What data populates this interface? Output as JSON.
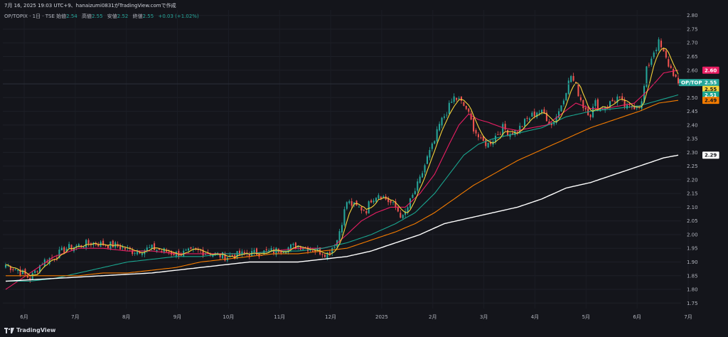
{
  "header": {
    "title_line": "7月 16, 2025 19:03 UTC+9、hanaizumi0831がTradingView.comで作成",
    "symbol": "OP/TOPIX · 1日 · TSE",
    "open_label": "始値",
    "open_value": "2.54",
    "high_label": "高値",
    "high_value": "2.55",
    "low_label": "安値",
    "low_value": "2.52",
    "close_label": "終値",
    "close_value": "2.55",
    "change": "+0.03 (+1.02%)"
  },
  "footer": {
    "brand": "TradingView"
  },
  "colors": {
    "background": "#14151b",
    "up": "#26a69a",
    "down": "#ef5350",
    "ma5": "#f5d33b",
    "ma25": "#e91e63",
    "ma50": "#1aa58f",
    "ma75": "#f57c00",
    "ma200": "#ffffff"
  },
  "chart_data": {
    "type": "line",
    "title": "",
    "x_axis_labels": [
      "6月",
      "7月",
      "8月",
      "9月",
      "10月",
      "11月",
      "12月",
      "2025",
      "2月",
      "3月",
      "4月",
      "5月",
      "6月",
      "7月"
    ],
    "y_axis_ticks": [
      "2.80",
      "2.75",
      "2.70",
      "2.65",
      "2.60",
      "2.55",
      "2.50",
      "2.45",
      "2.40",
      "2.35",
      "2.30",
      "2.25",
      "2.20",
      "2.15",
      "2.10",
      "2.05",
      "2.00",
      "1.95",
      "1.90",
      "1.85",
      "1.80",
      "1.75"
    ],
    "ylim": [
      1.73,
      2.82
    ],
    "grid": true,
    "price_points": [
      [
        0,
        1.89
      ],
      [
        5,
        1.87
      ],
      [
        10,
        1.84
      ],
      [
        15,
        1.9
      ],
      [
        20,
        1.92
      ],
      [
        25,
        1.95
      ],
      [
        35,
        1.97
      ],
      [
        45,
        1.96
      ],
      [
        52,
        1.94
      ],
      [
        60,
        1.95
      ],
      [
        70,
        1.93
      ],
      [
        80,
        1.94
      ],
      [
        90,
        1.92
      ],
      [
        100,
        1.93
      ],
      [
        110,
        1.94
      ],
      [
        120,
        1.96
      ],
      [
        125,
        1.95
      ],
      [
        132,
        1.93
      ],
      [
        136,
        1.98
      ],
      [
        140,
        2.12
      ],
      [
        144,
        2.1
      ],
      [
        148,
        2.09
      ],
      [
        150,
        2.13
      ],
      [
        153,
        2.15
      ],
      [
        156,
        2.13
      ],
      [
        160,
        2.1
      ],
      [
        163,
        2.06
      ],
      [
        166,
        2.12
      ],
      [
        170,
        2.2
      ],
      [
        173,
        2.28
      ],
      [
        176,
        2.34
      ],
      [
        178,
        2.4
      ],
      [
        181,
        2.45
      ],
      [
        184,
        2.5
      ],
      [
        186,
        2.49
      ],
      [
        189,
        2.46
      ],
      [
        192,
        2.39
      ],
      [
        195,
        2.34
      ],
      [
        198,
        2.33
      ],
      [
        201,
        2.36
      ],
      [
        204,
        2.39
      ],
      [
        207,
        2.37
      ],
      [
        210,
        2.38
      ],
      [
        214,
        2.42
      ],
      [
        218,
        2.45
      ],
      [
        221,
        2.44
      ],
      [
        224,
        2.4
      ],
      [
        227,
        2.45
      ],
      [
        230,
        2.53
      ],
      [
        232,
        2.58
      ],
      [
        234,
        2.54
      ],
      [
        237,
        2.47
      ],
      [
        240,
        2.44
      ],
      [
        242,
        2.48
      ],
      [
        244,
        2.46
      ],
      [
        248,
        2.48
      ],
      [
        251,
        2.5
      ],
      [
        255,
        2.46
      ],
      [
        258,
        2.47
      ],
      [
        261,
        2.48
      ],
      [
        263,
        2.6
      ],
      [
        266,
        2.67
      ],
      [
        268,
        2.7
      ],
      [
        270,
        2.66
      ],
      [
        272,
        2.62
      ],
      [
        274,
        2.59
      ],
      [
        276,
        2.55
      ]
    ],
    "series": [
      {
        "name": "OP/TOPIX",
        "last_value": "2.55",
        "color": "#26a69a"
      },
      {
        "color": "#e91e63",
        "last_value": "2.60",
        "values": [
          [
            0,
            1.8
          ],
          [
            10,
            1.86
          ],
          [
            20,
            1.92
          ],
          [
            30,
            1.95
          ],
          [
            40,
            1.95
          ],
          [
            50,
            1.94
          ],
          [
            60,
            1.94
          ],
          [
            70,
            1.93
          ],
          [
            80,
            1.93
          ],
          [
            90,
            1.93
          ],
          [
            100,
            1.93
          ],
          [
            110,
            1.94
          ],
          [
            120,
            1.95
          ],
          [
            130,
            1.95
          ],
          [
            135,
            1.96
          ],
          [
            140,
            2.0
          ],
          [
            146,
            2.05
          ],
          [
            152,
            2.08
          ],
          [
            158,
            2.1
          ],
          [
            164,
            2.1
          ],
          [
            170,
            2.15
          ],
          [
            176,
            2.22
          ],
          [
            182,
            2.33
          ],
          [
            186,
            2.4
          ],
          [
            190,
            2.44
          ],
          [
            194,
            2.42
          ],
          [
            198,
            2.41
          ],
          [
            204,
            2.39
          ],
          [
            210,
            2.38
          ],
          [
            216,
            2.39
          ],
          [
            222,
            2.4
          ],
          [
            228,
            2.44
          ],
          [
            234,
            2.48
          ],
          [
            240,
            2.46
          ],
          [
            246,
            2.46
          ],
          [
            252,
            2.47
          ],
          [
            258,
            2.48
          ],
          [
            264,
            2.53
          ],
          [
            270,
            2.59
          ],
          [
            276,
            2.6
          ]
        ]
      },
      {
        "color": "#1aa58f",
        "last_value": "2.51",
        "values": [
          [
            0,
            1.83
          ],
          [
            10,
            1.83
          ],
          [
            20,
            1.84
          ],
          [
            30,
            1.86
          ],
          [
            40,
            1.88
          ],
          [
            50,
            1.9
          ],
          [
            60,
            1.91
          ],
          [
            70,
            1.92
          ],
          [
            80,
            1.92
          ],
          [
            90,
            1.93
          ],
          [
            100,
            1.93
          ],
          [
            110,
            1.94
          ],
          [
            120,
            1.94
          ],
          [
            130,
            1.95
          ],
          [
            140,
            1.97
          ],
          [
            150,
            2.0
          ],
          [
            160,
            2.04
          ],
          [
            168,
            2.08
          ],
          [
            176,
            2.15
          ],
          [
            182,
            2.22
          ],
          [
            188,
            2.29
          ],
          [
            194,
            2.33
          ],
          [
            200,
            2.35
          ],
          [
            210,
            2.37
          ],
          [
            220,
            2.39
          ],
          [
            230,
            2.43
          ],
          [
            240,
            2.45
          ],
          [
            250,
            2.46
          ],
          [
            260,
            2.47
          ],
          [
            268,
            2.49
          ],
          [
            276,
            2.51
          ]
        ]
      },
      {
        "color": "#f57c00",
        "last_value": "2.49",
        "values": [
          [
            0,
            1.85
          ],
          [
            10,
            1.85
          ],
          [
            20,
            1.85
          ],
          [
            30,
            1.85
          ],
          [
            40,
            1.86
          ],
          [
            50,
            1.86
          ],
          [
            60,
            1.87
          ],
          [
            70,
            1.88
          ],
          [
            80,
            1.9
          ],
          [
            90,
            1.91
          ],
          [
            100,
            1.92
          ],
          [
            110,
            1.93
          ],
          [
            120,
            1.93
          ],
          [
            130,
            1.94
          ],
          [
            140,
            1.95
          ],
          [
            150,
            1.98
          ],
          [
            160,
            2.01
          ],
          [
            168,
            2.04
          ],
          [
            176,
            2.08
          ],
          [
            184,
            2.13
          ],
          [
            192,
            2.18
          ],
          [
            200,
            2.22
          ],
          [
            210,
            2.27
          ],
          [
            220,
            2.31
          ],
          [
            230,
            2.35
          ],
          [
            240,
            2.39
          ],
          [
            250,
            2.42
          ],
          [
            260,
            2.45
          ],
          [
            268,
            2.48
          ],
          [
            276,
            2.49
          ]
        ]
      },
      {
        "color": "#ffffff",
        "last_value": "2.29",
        "values": [
          [
            0,
            1.83
          ],
          [
            20,
            1.84
          ],
          [
            40,
            1.85
          ],
          [
            60,
            1.86
          ],
          [
            80,
            1.88
          ],
          [
            100,
            1.9
          ],
          [
            120,
            1.9
          ],
          [
            130,
            1.91
          ],
          [
            140,
            1.92
          ],
          [
            150,
            1.94
          ],
          [
            160,
            1.97
          ],
          [
            170,
            2.0
          ],
          [
            180,
            2.04
          ],
          [
            190,
            2.06
          ],
          [
            200,
            2.08
          ],
          [
            210,
            2.1
          ],
          [
            220,
            2.13
          ],
          [
            230,
            2.17
          ],
          [
            240,
            2.19
          ],
          [
            250,
            2.22
          ],
          [
            260,
            2.25
          ],
          [
            270,
            2.28
          ],
          [
            276,
            2.29
          ]
        ]
      }
    ]
  }
}
